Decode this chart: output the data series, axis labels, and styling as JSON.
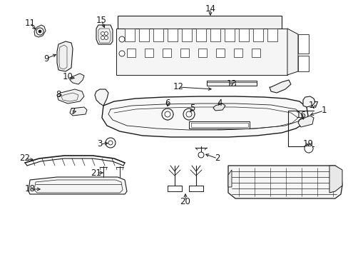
{
  "bg_color": "#ffffff",
  "lc": "#1a1a1a",
  "lw_main": 1.0,
  "lw_thin": 0.6,
  "fig_w": 4.89,
  "fig_h": 3.6,
  "dpi": 100
}
